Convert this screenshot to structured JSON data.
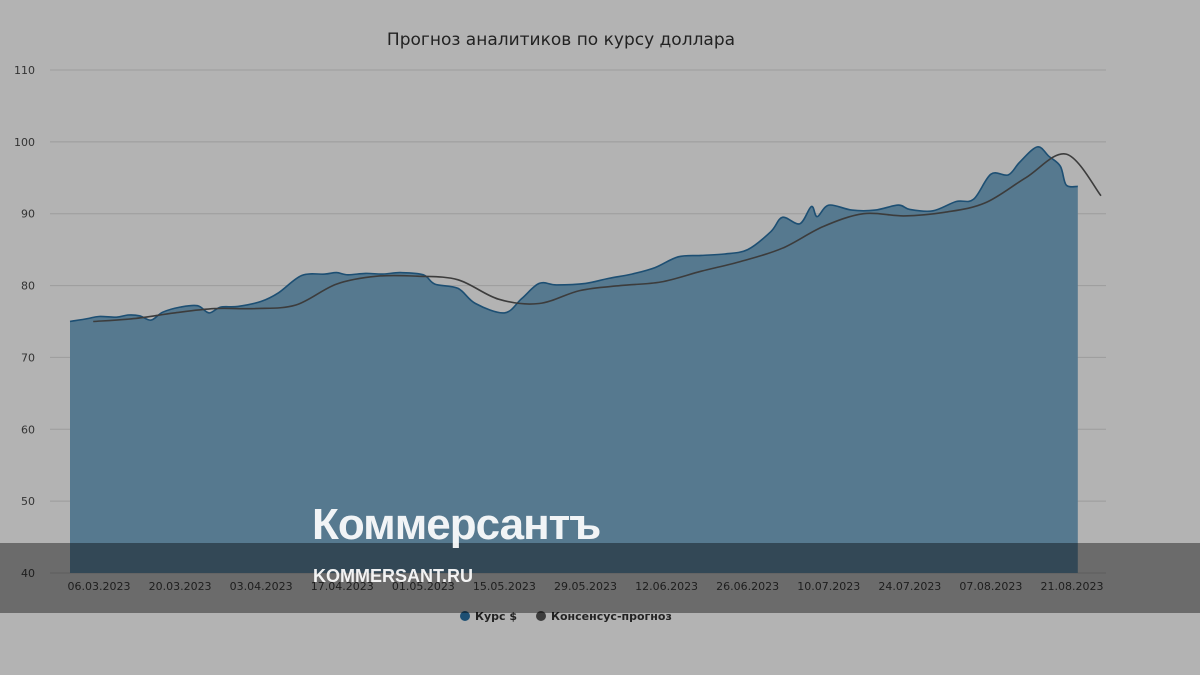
{
  "chart_data": {
    "type": "area",
    "title": "Прогноз аналитиков по курсу доллара",
    "ylim": [
      40,
      110
    ],
    "yticks": [
      40,
      50,
      60,
      70,
      80,
      90,
      100,
      110
    ],
    "xticks": [
      "06.03.2023",
      "20.03.2023",
      "03.04.2023",
      "17.04.2023",
      "01.05.2023",
      "15.05.2023",
      "29.05.2023",
      "12.06.2023",
      "26.06.2023",
      "10.07.2023",
      "24.07.2023",
      "07.08.2023",
      "21.08.2023"
    ],
    "grid": true,
    "legend_position": "bottom",
    "colors": {
      "rate": "#1d4f73",
      "rate_fill": "#56798f",
      "consensus": "#3c3c3c"
    },
    "series": [
      {
        "name": "Курс $",
        "points": [
          [
            "01.03.2023",
            75.0
          ],
          [
            "04.03.2023",
            75.4
          ],
          [
            "06.03.2023",
            75.7
          ],
          [
            "09.03.2023",
            75.6
          ],
          [
            "11.03.2023",
            75.9
          ],
          [
            "13.03.2023",
            75.8
          ],
          [
            "15.03.2023",
            75.2
          ],
          [
            "17.03.2023",
            76.3
          ],
          [
            "20.03.2023",
            77.0
          ],
          [
            "23.03.2023",
            77.2
          ],
          [
            "25.03.2023",
            76.2
          ],
          [
            "27.03.2023",
            77.0
          ],
          [
            "30.03.2023",
            77.1
          ],
          [
            "03.04.2023",
            77.8
          ],
          [
            "06.04.2023",
            79.0
          ],
          [
            "10.04.2023",
            81.4
          ],
          [
            "14.04.2023",
            81.6
          ],
          [
            "16.04.2023",
            81.8
          ],
          [
            "18.04.2023",
            81.5
          ],
          [
            "21.04.2023",
            81.7
          ],
          [
            "24.04.2023",
            81.6
          ],
          [
            "27.04.2023",
            81.8
          ],
          [
            "01.05.2023",
            81.5
          ],
          [
            "03.05.2023",
            80.2
          ],
          [
            "07.05.2023",
            79.6
          ],
          [
            "10.05.2023",
            77.5
          ],
          [
            "15.05.2023",
            76.2
          ],
          [
            "18.05.2023",
            78.2
          ],
          [
            "21.05.2023",
            80.3
          ],
          [
            "24.05.2023",
            80.1
          ],
          [
            "29.05.2023",
            80.3
          ],
          [
            "02.06.2023",
            81.0
          ],
          [
            "06.06.2023",
            81.6
          ],
          [
            "10.06.2023",
            82.5
          ],
          [
            "14.06.2023",
            84.0
          ],
          [
            "18.06.2023",
            84.2
          ],
          [
            "22.06.2023",
            84.4
          ],
          [
            "26.06.2023",
            85.0
          ],
          [
            "30.06.2023",
            87.5
          ],
          [
            "02.07.2023",
            89.5
          ],
          [
            "05.07.2023",
            88.6
          ],
          [
            "07.07.2023",
            91.0
          ],
          [
            "08.07.2023",
            89.6
          ],
          [
            "10.07.2023",
            91.2
          ],
          [
            "14.07.2023",
            90.5
          ],
          [
            "18.07.2023",
            90.5
          ],
          [
            "22.07.2023",
            91.2
          ],
          [
            "24.07.2023",
            90.6
          ],
          [
            "28.07.2023",
            90.4
          ],
          [
            "01.08.2023",
            91.7
          ],
          [
            "04.08.2023",
            92.0
          ],
          [
            "07.08.2023",
            95.5
          ],
          [
            "10.08.2023",
            95.4
          ],
          [
            "12.08.2023",
            97.2
          ],
          [
            "15.08.2023",
            99.3
          ],
          [
            "17.08.2023",
            98.0
          ],
          [
            "19.08.2023",
            96.6
          ],
          [
            "20.08.2023",
            94.0
          ],
          [
            "22.08.2023",
            93.8
          ]
        ]
      },
      {
        "name": "Консенсус-прогноз",
        "points": [
          [
            "05.03.2023",
            75.0
          ],
          [
            "12.03.2023",
            75.4
          ],
          [
            "19.03.2023",
            76.2
          ],
          [
            "26.03.2023",
            76.8
          ],
          [
            "02.04.2023",
            76.8
          ],
          [
            "09.04.2023",
            77.3
          ],
          [
            "16.04.2023",
            80.2
          ],
          [
            "23.04.2023",
            81.3
          ],
          [
            "30.04.2023",
            81.3
          ],
          [
            "07.05.2023",
            80.8
          ],
          [
            "14.05.2023",
            78.1
          ],
          [
            "21.05.2023",
            77.5
          ],
          [
            "28.05.2023",
            79.3
          ],
          [
            "04.06.2023",
            80.0
          ],
          [
            "11.06.2023",
            80.5
          ],
          [
            "18.06.2023",
            82.0
          ],
          [
            "25.06.2023",
            83.4
          ],
          [
            "02.07.2023",
            85.2
          ],
          [
            "09.07.2023",
            88.2
          ],
          [
            "16.07.2023",
            90.0
          ],
          [
            "23.07.2023",
            89.7
          ],
          [
            "30.07.2023",
            90.2
          ],
          [
            "06.08.2023",
            91.5
          ],
          [
            "13.08.2023",
            95.0
          ],
          [
            "20.08.2023",
            98.3
          ],
          [
            "26.08.2023",
            92.5
          ]
        ]
      }
    ]
  },
  "watermark": {
    "name": "Коммерсантъ",
    "url": "KOMMERSANT.RU"
  }
}
